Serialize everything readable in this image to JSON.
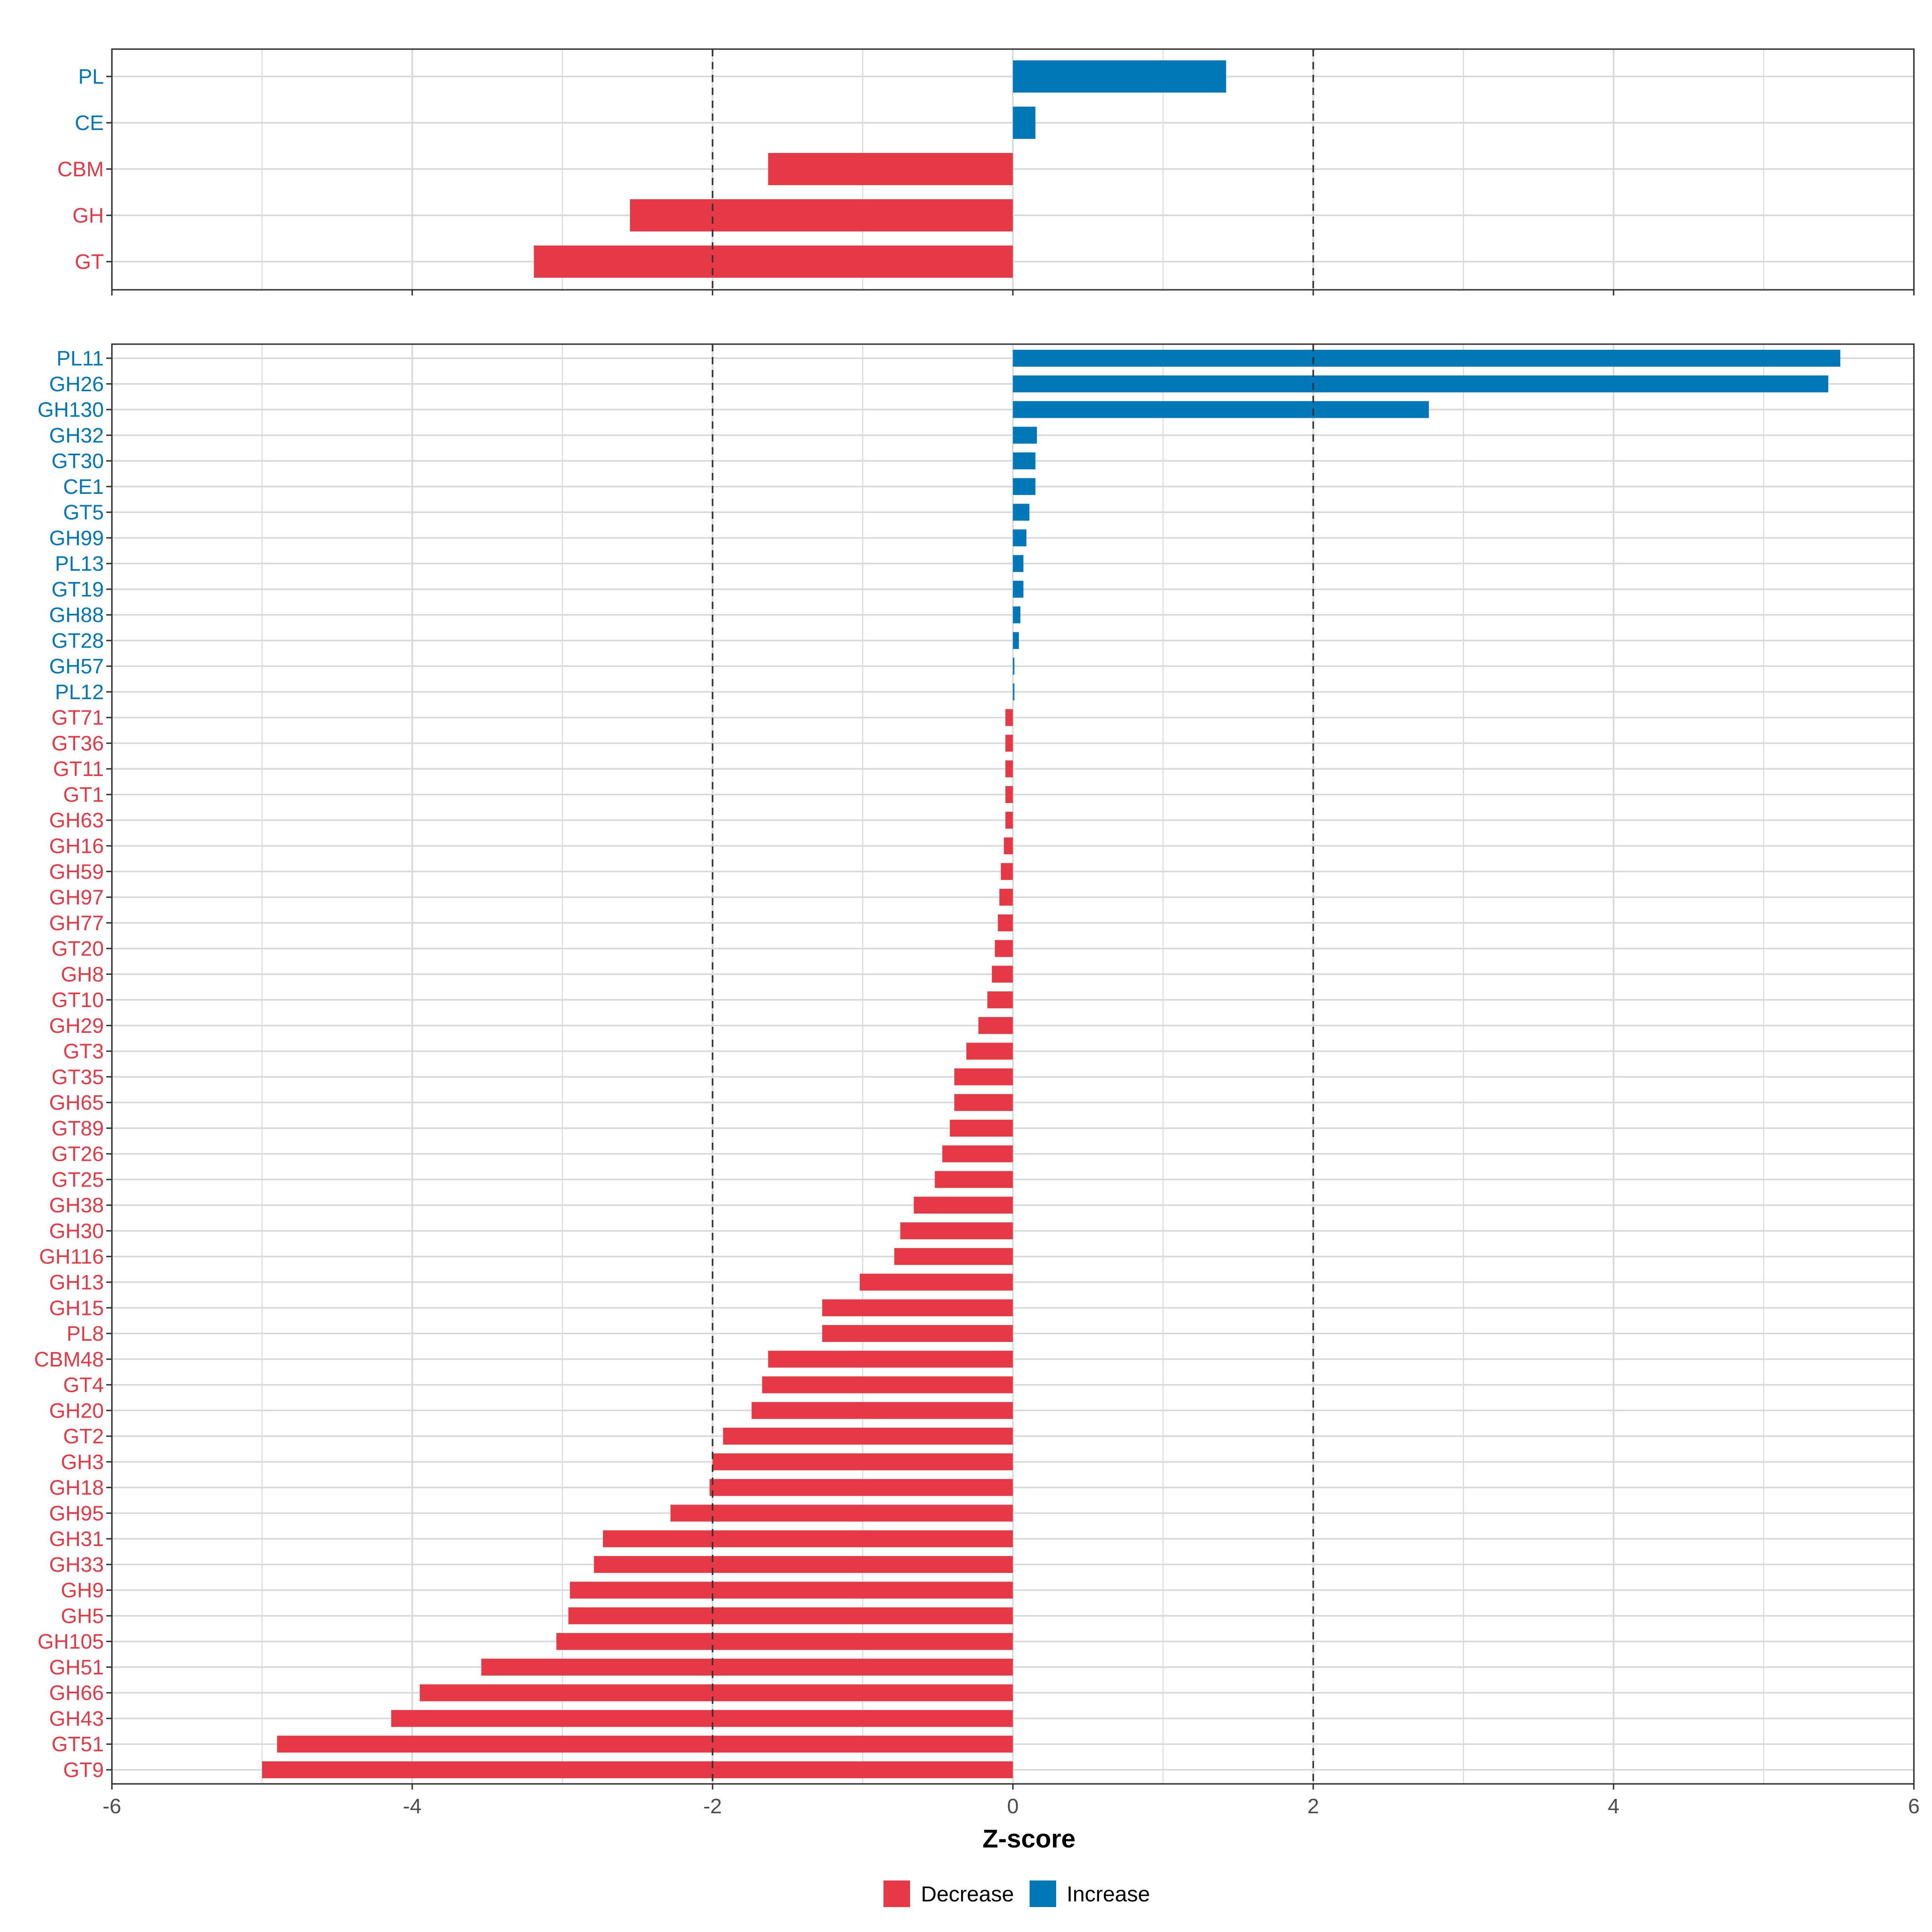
{
  "chart_data": [
    {
      "type": "bar",
      "orientation": "horizontal",
      "panel": "top",
      "categories": [
        "PL",
        "CE",
        "CBM",
        "GH",
        "GT"
      ],
      "values": [
        1.42,
        0.15,
        -1.63,
        -2.55,
        -3.19
      ],
      "xlim": [
        -6,
        6
      ],
      "xticks": [
        -6,
        -4,
        -2,
        0,
        2,
        4,
        6
      ],
      "reference_lines": [
        -2,
        2
      ]
    },
    {
      "type": "bar",
      "orientation": "horizontal",
      "panel": "bottom",
      "categories": [
        "PL11",
        "GH26",
        "GH130",
        "GH32",
        "GT30",
        "CE1",
        "GT5",
        "GH99",
        "PL13",
        "GT19",
        "GH88",
        "GT28",
        "GH57",
        "PL12",
        "GT71",
        "GT36",
        "GT11",
        "GT1",
        "GH63",
        "GH16",
        "GH59",
        "GH97",
        "GH77",
        "GT20",
        "GH8",
        "GT10",
        "GH29",
        "GT3",
        "GT35",
        "GH65",
        "GT89",
        "GT26",
        "GT25",
        "GH38",
        "GH30",
        "GH116",
        "GH13",
        "GH15",
        "PL8",
        "CBM48",
        "GT4",
        "GH20",
        "GT2",
        "GH3",
        "GH18",
        "GH95",
        "GH31",
        "GH33",
        "GH9",
        "GH5",
        "GH105",
        "GH51",
        "GH66",
        "GH43",
        "GT51",
        "GT9"
      ],
      "values": [
        5.51,
        5.43,
        2.77,
        0.16,
        0.15,
        0.15,
        0.11,
        0.09,
        0.07,
        0.07,
        0.05,
        0.04,
        0.01,
        0.01,
        -0.05,
        -0.05,
        -0.05,
        -0.05,
        -0.05,
        -0.06,
        -0.08,
        -0.09,
        -0.1,
        -0.12,
        -0.14,
        -0.17,
        -0.23,
        -0.31,
        -0.39,
        -0.39,
        -0.42,
        -0.47,
        -0.52,
        -0.66,
        -0.75,
        -0.79,
        -1.02,
        -1.27,
        -1.27,
        -1.63,
        -1.67,
        -1.74,
        -1.93,
        -2.0,
        -2.02,
        -2.28,
        -2.73,
        -2.79,
        -2.95,
        -2.96,
        -3.04,
        -3.54,
        -3.95,
        -4.14,
        -4.9,
        -5.0
      ],
      "xlabel": "Z-score",
      "xlim": [
        -6,
        6
      ],
      "xticks": [
        -6,
        -4,
        -2,
        0,
        2,
        4,
        6
      ],
      "reference_lines": [
        -2,
        2
      ]
    }
  ],
  "legend": {
    "decrease_label": "Decrease",
    "increase_label": "Increase"
  },
  "colors": {
    "decrease": "#E63946",
    "increase": "#0077B6",
    "grid": "#D9D9D9",
    "panel_border": "#333333",
    "reference_line": "#333333"
  }
}
